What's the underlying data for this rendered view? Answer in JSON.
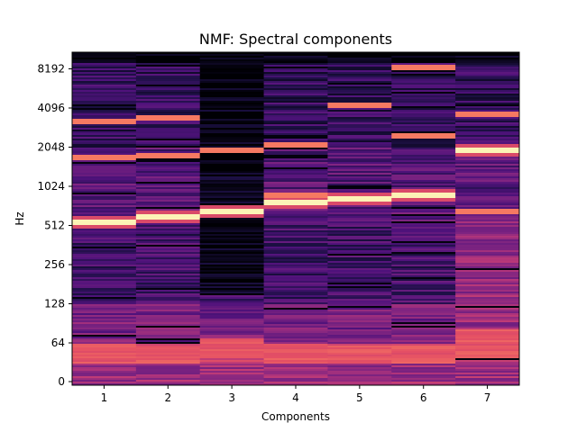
{
  "chart_data": {
    "type": "heatmap",
    "title": "NMF: Spectral components",
    "xlabel": "Components",
    "ylabel": "Hz",
    "x_ticks": [
      "1",
      "2",
      "3",
      "4",
      "5",
      "6",
      "7"
    ],
    "y_scale": "log2",
    "y_ticks": [
      "0",
      "64",
      "128",
      "256",
      "512",
      "1024",
      "2048",
      "4096",
      "8192"
    ],
    "colormap": "magma",
    "grid": false,
    "legend": "none",
    "series": [
      {
        "component": "1",
        "dominant_hz": 540,
        "peaks_hz": [
          540,
          1700,
          3200
        ],
        "low_band_hz": [
          30,
          60
        ]
      },
      {
        "component": "2",
        "dominant_hz": 600,
        "peaks_hz": [
          600,
          1750,
          3400
        ],
        "low_band_hz": [
          30,
          60
        ]
      },
      {
        "component": "3",
        "dominant_hz": 650,
        "peaks_hz": [
          650,
          1950
        ],
        "low_band_hz": [
          40,
          70
        ]
      },
      {
        "component": "4",
        "dominant_hz": 760,
        "peaks_hz": [
          760,
          880,
          2150
        ],
        "low_band_hz": [
          30,
          60
        ]
      },
      {
        "component": "5",
        "dominant_hz": 820,
        "peaks_hz": [
          820,
          4300
        ],
        "low_band_hz": [
          30,
          60
        ]
      },
      {
        "component": "6",
        "dominant_hz": 870,
        "peaks_hz": [
          870,
          2500,
          8400
        ],
        "low_band_hz": [
          30,
          60
        ]
      },
      {
        "component": "7",
        "dominant_hz": 1950,
        "peaks_hz": [
          1950,
          660,
          3700
        ],
        "low_band_hz": [
          40,
          80
        ]
      }
    ]
  }
}
